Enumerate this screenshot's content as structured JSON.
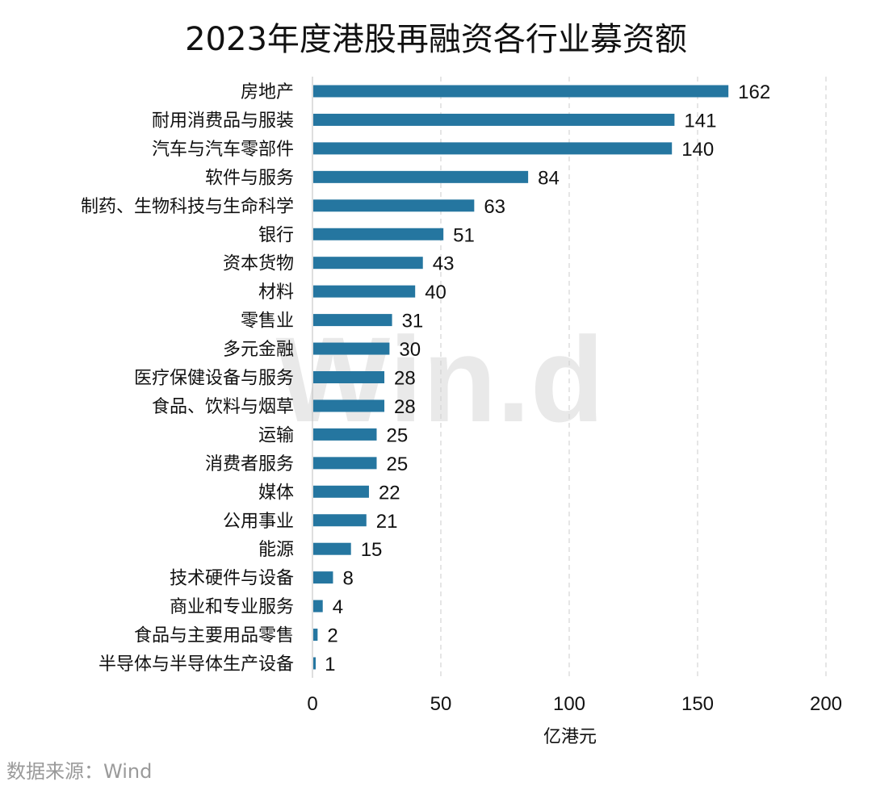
{
  "chart_data": {
    "type": "bar",
    "orientation": "horizontal",
    "title": "2023年度港股再融资各行业募资额",
    "xlabel": "亿港元",
    "ylabel": "",
    "xlim": [
      0,
      200
    ],
    "xticks": [
      0,
      50,
      100,
      150,
      200
    ],
    "grid": "vertical-dashed",
    "bar_color": "#2576A0",
    "categories": [
      "房地产",
      "耐用消费品与服装",
      "汽车与汽车零部件",
      "软件与服务",
      "制药、生物科技与生命科学",
      "银行",
      "资本货物",
      "材料",
      "零售业",
      "多元金融",
      "医疗保健设备与服务",
      "食品、饮料与烟草",
      "运输",
      "消费者服务",
      "媒体",
      "公用事业",
      "能源",
      "技术硬件与设备",
      "商业和专业服务",
      "食品与主要用品零售",
      "半导体与半导体生产设备"
    ],
    "values": [
      162,
      141,
      140,
      84,
      63,
      51,
      43,
      40,
      31,
      30,
      28,
      28,
      25,
      25,
      22,
      21,
      15,
      8,
      4,
      2,
      1
    ]
  },
  "source": "数据来源：Wind",
  "watermark": "Win.d"
}
